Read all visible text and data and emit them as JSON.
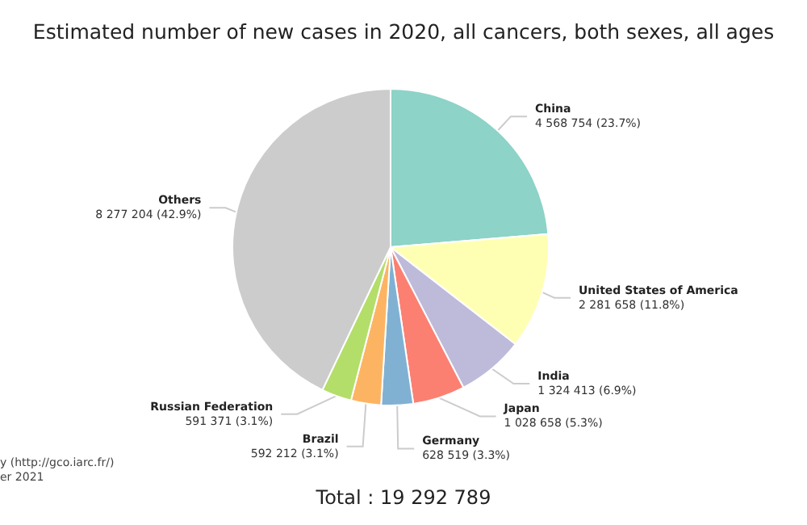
{
  "chart_data": {
    "type": "pie",
    "title": "Estimated number of new cases in 2020, all cancers, both sexes, all ages",
    "categories": [
      "China",
      "United States of America",
      "India",
      "Japan",
      "Germany",
      "Brazil",
      "Russian Federation",
      "Others"
    ],
    "values": [
      4568754,
      2281658,
      1324413,
      1028658,
      628519,
      592212,
      591371,
      8277204
    ],
    "value_labels": [
      "4 568 754 (23.7%)",
      "2 281 658 (11.8%)",
      "1 324 413 (6.9%)",
      "1 028 658 (5.3%)",
      "628 519 (3.3%)",
      "592 212 (3.1%)",
      "591 371 (3.1%)",
      "8 277 204 (42.9%)"
    ],
    "colors": [
      "#8dd3c7",
      "#ffffb3",
      "#bebada",
      "#fb8072",
      "#80b1d3",
      "#fdb462",
      "#b3de69",
      "#cccccc"
    ],
    "annotations": [
      "Total : 19 292 789",
      "y (http://gco.iarc.fr/)",
      "er 2021"
    ],
    "legend": false
  }
}
